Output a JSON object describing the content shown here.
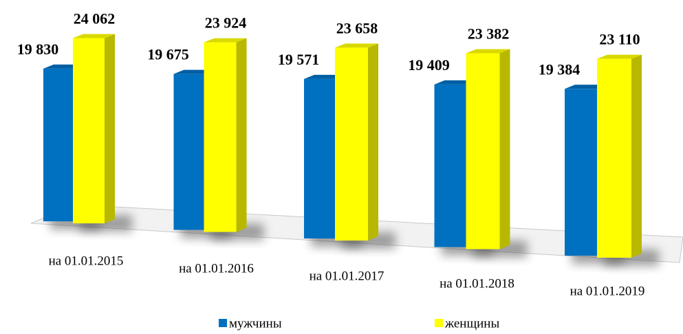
{
  "chart_data": {
    "type": "bar3d",
    "categories": [
      "на 01.01.2015",
      "на 01.01.2016",
      "на 01.01.2017",
      "на 01.01.2018",
      "на 01.01.2019"
    ],
    "series": [
      {
        "name": "мужчины",
        "color": "#0070c0",
        "values": [
          19830,
          19675,
          19571,
          19409,
          19384
        ],
        "value_labels": [
          "19 830",
          "19 675",
          "19 571",
          "19 409",
          "19 384"
        ]
      },
      {
        "name": "женщины",
        "color": "#ffff00",
        "values": [
          24062,
          23924,
          23658,
          23382,
          23110
        ],
        "value_labels": [
          "24 062",
          "23 924",
          "23 658",
          "23 382",
          "23 110"
        ]
      }
    ],
    "legend": "bottom"
  }
}
